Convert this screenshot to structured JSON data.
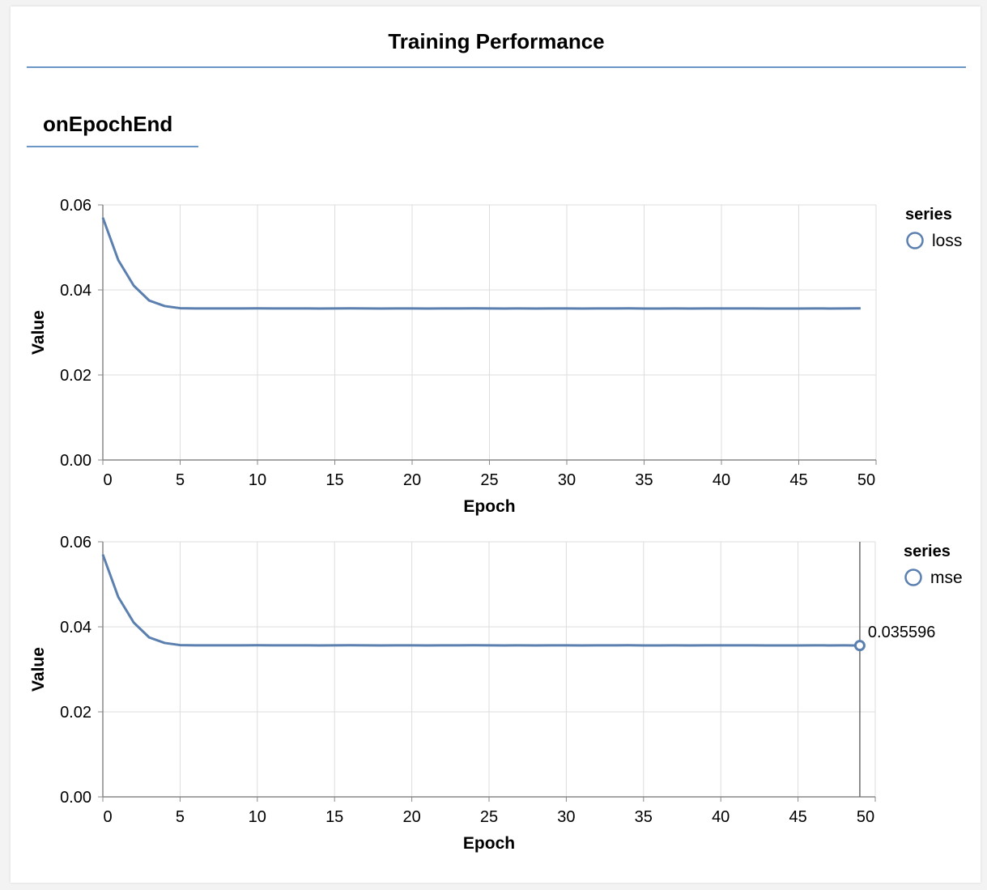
{
  "visor": {
    "title": "Training Performance",
    "tab_label": "onEpochEnd"
  },
  "colors": {
    "series": "#5b7fae",
    "grid": "#dddddd",
    "axis": "#888888",
    "accent_rule": "#6a96c9"
  },
  "chart_data": [
    {
      "type": "line",
      "title": "",
      "xlabel": "Epoch",
      "ylabel": "Value",
      "xlim": [
        0,
        50
      ],
      "ylim": [
        0,
        0.06
      ],
      "x_ticks": [
        "0",
        "5",
        "10",
        "15",
        "20",
        "25",
        "30",
        "35",
        "40",
        "45",
        "50"
      ],
      "y_ticks": [
        "0.06",
        "0.04",
        "0.02",
        "0.00"
      ],
      "grid": true,
      "legend": {
        "title": "series",
        "placement": "right"
      },
      "series": [
        {
          "name": "loss",
          "x": [
            0,
            1,
            2,
            3,
            4,
            5,
            6,
            7,
            8,
            9,
            10,
            11,
            12,
            13,
            14,
            15,
            16,
            17,
            18,
            19,
            20,
            21,
            22,
            23,
            24,
            25,
            26,
            27,
            28,
            29,
            30,
            31,
            32,
            33,
            34,
            35,
            36,
            37,
            38,
            39,
            40,
            41,
            42,
            43,
            44,
            45,
            46,
            47,
            48,
            49
          ],
          "values": [
            0.057,
            0.047,
            0.041,
            0.0375,
            0.0362,
            0.0357,
            0.03565,
            0.03565,
            0.03565,
            0.03565,
            0.03566,
            0.03565,
            0.03565,
            0.03565,
            0.03563,
            0.03565,
            0.03567,
            0.03565,
            0.03563,
            0.03564,
            0.03564,
            0.03563,
            0.03564,
            0.03565,
            0.03566,
            0.03564,
            0.03563,
            0.03564,
            0.03563,
            0.03564,
            0.03564,
            0.03563,
            0.03565,
            0.03564,
            0.03566,
            0.03563,
            0.03563,
            0.03564,
            0.03563,
            0.03564,
            0.03565,
            0.03564,
            0.03564,
            0.03563,
            0.03562,
            0.03563,
            0.03564,
            0.03563,
            0.03564,
            0.03566
          ]
        }
      ]
    },
    {
      "type": "line",
      "title": "",
      "xlabel": "Epoch",
      "ylabel": "Value",
      "xlim": [
        0,
        50
      ],
      "ylim": [
        0,
        0.06
      ],
      "x_ticks": [
        "0",
        "5",
        "10",
        "15",
        "20",
        "25",
        "30",
        "35",
        "40",
        "45",
        "50"
      ],
      "y_ticks": [
        "0.06",
        "0.04",
        "0.02",
        "0.00"
      ],
      "grid": true,
      "legend": {
        "title": "series",
        "placement": "right"
      },
      "hover": {
        "x": 49,
        "value": 0.035596,
        "label": "0.035596"
      },
      "series": [
        {
          "name": "mse",
          "x": [
            0,
            1,
            2,
            3,
            4,
            5,
            6,
            7,
            8,
            9,
            10,
            11,
            12,
            13,
            14,
            15,
            16,
            17,
            18,
            19,
            20,
            21,
            22,
            23,
            24,
            25,
            26,
            27,
            28,
            29,
            30,
            31,
            32,
            33,
            34,
            35,
            36,
            37,
            38,
            39,
            40,
            41,
            42,
            43,
            44,
            45,
            46,
            47,
            48,
            49
          ],
          "values": [
            0.057,
            0.047,
            0.041,
            0.0375,
            0.0362,
            0.0357,
            0.03565,
            0.03565,
            0.03565,
            0.03565,
            0.03566,
            0.03565,
            0.03565,
            0.03565,
            0.03563,
            0.03565,
            0.03567,
            0.03565,
            0.03563,
            0.03564,
            0.03564,
            0.03563,
            0.03564,
            0.03565,
            0.03566,
            0.03564,
            0.03563,
            0.03564,
            0.03563,
            0.03564,
            0.03564,
            0.03563,
            0.03565,
            0.03564,
            0.03566,
            0.03563,
            0.03563,
            0.03564,
            0.03563,
            0.03564,
            0.03565,
            0.03564,
            0.03564,
            0.03563,
            0.03562,
            0.03563,
            0.03564,
            0.03563,
            0.03564,
            0.035596
          ]
        }
      ]
    }
  ]
}
